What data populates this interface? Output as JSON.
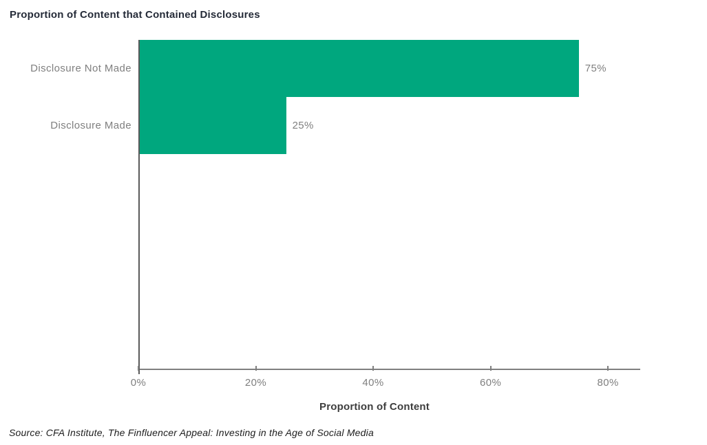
{
  "page": {
    "title": "Proportion of Content that Contained Disclosures",
    "source_note": "Source: CFA Institute, The Finfluencer Appeal: Investing in the Age of Social Media"
  },
  "chart_data": {
    "type": "bar",
    "orientation": "horizontal",
    "title": "Proportion of Content that Contained Disclosures",
    "categories": [
      "Disclosure Not Made",
      "Disclosure Made"
    ],
    "values": [
      75,
      25
    ],
    "value_labels": [
      "75%",
      "25%"
    ],
    "xlabel": "Proportion of Content",
    "ylabel": "",
    "xlim": [
      0,
      85.5
    ],
    "xticks": [
      0,
      20,
      40,
      60,
      80
    ],
    "xtick_labels": [
      "0%",
      "20%",
      "40%",
      "60%",
      "80%"
    ],
    "grid": false,
    "legend": false,
    "bar_color": "#00A77E",
    "source": "Source: CFA Institute, The Finfluencer Appeal: Investing in the Age of Social Media"
  },
  "colors": {
    "bar": "#00A77E",
    "title_text": "#252B38",
    "label_text": "#7F7F7F",
    "axis_title_text": "#3D3D3D",
    "y_axis_line": "#595959",
    "x_axis_line": "#7F7F7F",
    "source_text": "#1C1C1C",
    "background": "#FFFFFF"
  }
}
